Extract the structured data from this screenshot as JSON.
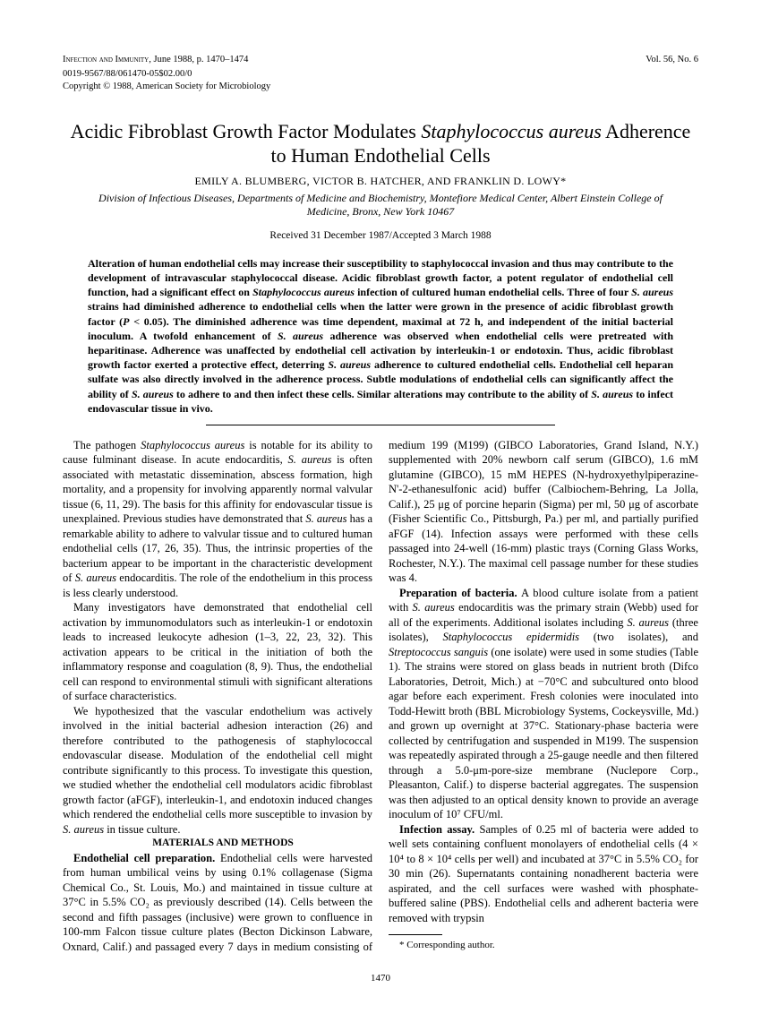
{
  "header": {
    "journal": "Infection and Immunity,",
    "issue_date": "June 1988, p. 1470–1474",
    "volume": "Vol. 56, No. 6",
    "code": "0019-9567/88/061470-05$02.00/0",
    "copyright": "Copyright © 1988, American Society for Microbiology"
  },
  "title_part1": "Acidic Fibroblast Growth Factor Modulates ",
  "title_italic": "Staphylococcus aureus",
  "title_part2": " Adherence to Human Endothelial Cells",
  "authors": "EMILY A. BLUMBERG, VICTOR B. HATCHER, AND FRANKLIN D. LOWY*",
  "affiliation": "Division of Infectious Diseases, Departments of Medicine and Biochemistry, Montefiore Medical Center, Albert Einstein College of Medicine, Bronx, New York 10467",
  "received": "Received 31 December 1987/Accepted 3 March 1988",
  "abstract": {
    "p1a": "Alteration of human endothelial cells may increase their susceptibility to staphylococcal invasion and thus may contribute to the development of intravascular staphylococcal disease. Acidic fibroblast growth factor, a potent regulator of endothelial cell function, had a significant effect on ",
    "p1b": "Staphylococcus aureus",
    "p1c": " infection of cultured human endothelial cells. Three of four ",
    "p1d": "S. aureus",
    "p1e": " strains had diminished adherence to endothelial cells when the latter were grown in the presence of acidic fibroblast growth factor (",
    "p1f": "P",
    "p1g": " < 0.05). The diminished adherence was time dependent, maximal at 72 h, and independent of the initial bacterial inoculum. A twofold enhancement of ",
    "p1h": "S. aureus",
    "p1i": " adherence was observed when endothelial cells were pretreated with heparitinase. Adherence was unaffected by endothelial cell activation by interleukin-1 or endotoxin. Thus, acidic fibroblast growth factor exerted a protective effect, deterring ",
    "p1j": "S. aureus",
    "p1k": " adherence to cultured endothelial cells. Endothelial cell heparan sulfate was also directly involved in the adherence process. Subtle modulations of endothelial cells can significantly affect the ability of ",
    "p1l": "S. aureus",
    "p1m": " to adhere to and then infect these cells. Similar alterations may contribute to the ability of ",
    "p1n": "S. aureus",
    "p1o": " to infect endovascular tissue in vivo."
  },
  "body": {
    "p1a": "The pathogen ",
    "p1b": "Staphylococcus aureus",
    "p1c": " is notable for its ability to cause fulminant disease. In acute endocarditis, ",
    "p1d": "S. aureus",
    "p1e": " is often associated with metastatic dissemination, abscess formation, high mortality, and a propensity for involving apparently normal valvular tissue (6, 11, 29). The basis for this affinity for endovascular tissue is unexplained. Previous studies have demonstrated that ",
    "p1f": "S. aureus",
    "p1g": " has a remarkable ability to adhere to valvular tissue and to cultured human endothelial cells (17, 26, 35). Thus, the intrinsic properties of the bacterium appear to be important in the characteristic development of ",
    "p1h": "S. aureus",
    "p1i": " endocarditis. The role of the endothelium in this process is less clearly understood.",
    "p2": "Many investigators have demonstrated that endothelial cell activation by immunomodulators such as interleukin-1 or endotoxin leads to increased leukocyte adhesion (1–3, 22, 23, 32). This activation appears to be critical in the initiation of both the inflammatory response and coagulation (8, 9). Thus, the endothelial cell can respond to environmental stimuli with significant alterations of surface characteristics.",
    "p3a": "We hypothesized that the vascular endothelium was actively involved in the initial bacterial adhesion interaction (26) and therefore contributed to the pathogenesis of staphylococcal endovascular disease. Modulation of the endothelial cell might contribute significantly to this process. To investigate this question, we studied whether the endothelial cell modulators acidic fibroblast growth factor (aFGF), interleukin-1, and endotoxin induced changes which rendered the endothelial cells more susceptible to invasion by ",
    "p3b": "S. aureus",
    "p3c": " in tissue culture.",
    "mm_head": "MATERIALS AND METHODS",
    "p4a": "Endothelial cell preparation.",
    "p4b": " Endothelial cells were harvested from human umbilical veins by using 0.1% collagenase (Sigma Chemical Co., St. Louis, Mo.) and maintained in tissue culture at 37°C in 5.5% CO₂ as previously described (14). Cells between the second and fifth passages (inclusive) were grown to confluence in 100-mm Falcon tissue culture plates (Becton Dickinson Labware, Oxnard, Calif.) and passaged every 7 days in medium consisting of medium 199 (M199) (GIBCO Laboratories, Grand Island, N.Y.) supplemented with 20% newborn calf serum (GIBCO), 1.6 mM glutamine (GIBCO), 15 mM HEPES (N-hydroxyethylpiperazine-N'-2-ethanesulfonic acid) buffer (Calbiochem-Behring, La Jolla, Calif.), 25 μg of porcine heparin (Sigma) per ml, 50 μg of ascorbate (Fisher Scientific Co., Pittsburgh, Pa.) per ml, and partially purified aFGF (14). Infection assays were performed with these cells passaged into 24-well (16-mm) plastic trays (Corning Glass Works, Rochester, N.Y.). The maximal cell passage number for these studies was 4.",
    "p5a": "Preparation of bacteria.",
    "p5b": " A blood culture isolate from a patient with ",
    "p5c": "S. aureus",
    "p5d": " endocarditis was the primary strain (Webb) used for all of the experiments. Additional isolates including ",
    "p5e": "S. aureus",
    "p5f": " (three isolates), ",
    "p5g": "Staphylococcus epidermidis",
    "p5h": " (two isolates), and ",
    "p5i": "Streptococcus sanguis",
    "p5j": " (one isolate) were used in some studies (Table 1). The strains were stored on glass beads in nutrient broth (Difco Laboratories, Detroit, Mich.) at −70°C and subcultured onto blood agar before each experiment. Fresh colonies were inoculated into Todd-Hewitt broth (BBL Microbiology Systems, Cockeysville, Md.) and grown up overnight at 37°C. Stationary-phase bacteria were collected by centrifugation and suspended in M199. The suspension was repeatedly aspirated through a 25-gauge needle and then filtered through a 5.0-μm-pore-size membrane (Nuclepore Corp., Pleasanton, Calif.) to disperse bacterial aggregates. The suspension was then adjusted to an optical density known to provide an average inoculum of 10⁷ CFU/ml.",
    "p6a": "Infection assay.",
    "p6b": " Samples of 0.25 ml of bacteria were added to well sets containing confluent monolayers of endothelial cells (4 × 10⁴ to 8 × 10⁴ cells per well) and incubated at 37°C in 5.5% CO₂ for 30 min (26). Supernatants containing nonadherent bacteria were aspirated, and the cell surfaces were washed with phosphate-buffered saline (PBS). Endothelial cells and adherent bacteria were removed with trypsin"
  },
  "footnote": "* Corresponding author.",
  "page_number": "1470"
}
